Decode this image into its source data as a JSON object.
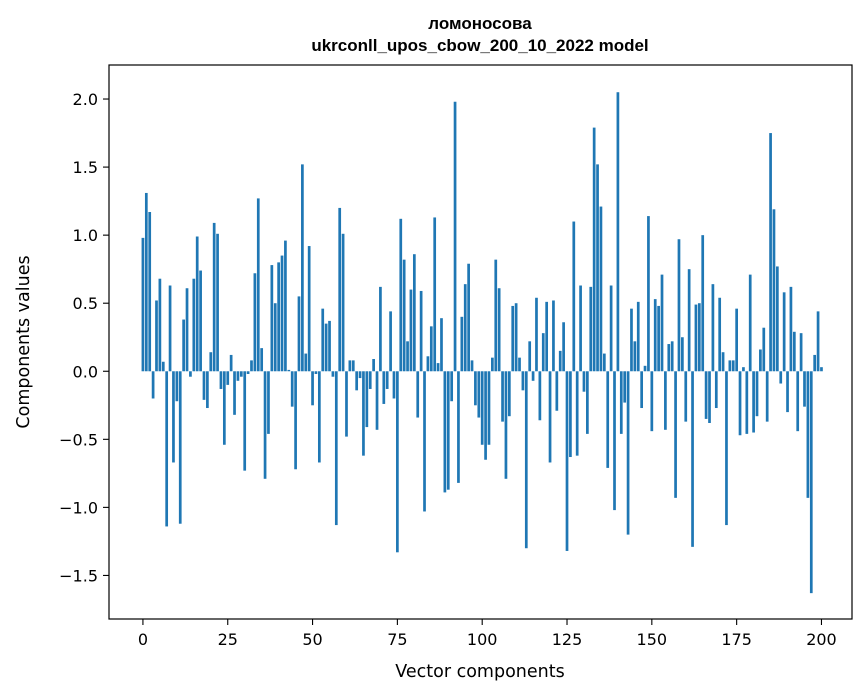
{
  "chart_data": {
    "type": "bar",
    "title_line1": "ломоносова",
    "title_line2": "ukrconll_upos_cbow_200_10_2022 model",
    "xlabel": "Vector components",
    "ylabel": "Components values",
    "xlim": [
      -10,
      209
    ],
    "ylim": [
      -1.82,
      2.25
    ],
    "xticks": [
      0,
      25,
      50,
      75,
      100,
      125,
      150,
      175,
      200
    ],
    "xtick_labels": [
      "0",
      "25",
      "50",
      "75",
      "100",
      "125",
      "150",
      "175",
      "200"
    ],
    "yticks": [
      -1.5,
      -1.0,
      -0.5,
      0.0,
      0.5,
      1.0,
      1.5,
      2.0
    ],
    "ytick_labels": [
      "−1.5",
      "−1.0",
      "−0.5",
      "0.0",
      "0.5",
      "1.0",
      "1.5",
      "2.0"
    ],
    "grid": false,
    "bar_color": "#1f77b4",
    "values": [
      0.98,
      1.31,
      1.17,
      -0.2,
      0.52,
      0.68,
      0.07,
      -1.14,
      0.63,
      -0.67,
      -0.22,
      -1.12,
      0.38,
      0.61,
      -0.04,
      0.68,
      0.99,
      0.74,
      -0.21,
      -0.27,
      0.14,
      1.09,
      1.01,
      -0.13,
      -0.54,
      -0.1,
      0.12,
      -0.32,
      -0.07,
      -0.04,
      -0.73,
      -0.02,
      0.08,
      0.72,
      1.27,
      0.17,
      -0.79,
      -0.46,
      0.78,
      0.5,
      0.8,
      0.85,
      0.96,
      0.01,
      -0.26,
      -0.72,
      0.55,
      1.52,
      0.13,
      0.92,
      -0.25,
      -0.02,
      -0.67,
      0.46,
      0.35,
      0.37,
      -0.04,
      -1.13,
      1.2,
      1.01,
      -0.48,
      0.08,
      0.08,
      -0.14,
      -0.05,
      -0.62,
      -0.41,
      -0.13,
      0.09,
      -0.43,
      0.62,
      -0.24,
      -0.13,
      0.44,
      -0.2,
      -1.33,
      1.12,
      0.82,
      0.22,
      0.6,
      0.86,
      -0.34,
      0.59,
      -1.03,
      0.11,
      0.33,
      1.13,
      0.06,
      0.39,
      -0.89,
      -0.87,
      -0.22,
      1.98,
      -0.82,
      0.4,
      0.64,
      0.79,
      0.08,
      -0.25,
      -0.34,
      -0.54,
      -0.65,
      -0.54,
      0.1,
      0.82,
      0.61,
      -0.37,
      -0.79,
      -0.33,
      0.48,
      0.5,
      0.1,
      -0.14,
      -1.3,
      0.22,
      -0.07,
      0.54,
      -0.36,
      0.28,
      0.51,
      -0.67,
      0.52,
      -0.29,
      0.15,
      0.36,
      -1.32,
      -0.63,
      1.1,
      -0.62,
      0.63,
      -0.15,
      -0.46,
      0.62,
      1.79,
      1.52,
      1.21,
      0.13,
      -0.71,
      0.63,
      -1.02,
      2.05,
      -0.46,
      -0.23,
      -1.2,
      0.46,
      0.22,
      0.51,
      -0.27,
      0.04,
      1.14,
      -0.44,
      0.53,
      0.48,
      0.71,
      -0.43,
      0.2,
      0.22,
      -0.93,
      0.97,
      0.25,
      -0.37,
      0.75,
      -1.29,
      0.49,
      0.5,
      1.0,
      -0.35,
      -0.38,
      0.64,
      -0.27,
      0.54,
      0.14,
      -1.13,
      0.08,
      0.08,
      0.46,
      -0.47,
      0.03,
      -0.46,
      0.71,
      -0.45,
      -0.33,
      0.16,
      0.32,
      -0.37,
      1.75,
      1.19,
      0.77,
      -0.09,
      0.58,
      -0.3,
      0.62,
      0.29,
      -0.44,
      0.28,
      -0.26,
      -0.93,
      -1.63,
      0.12,
      0.44,
      0.03
    ]
  }
}
